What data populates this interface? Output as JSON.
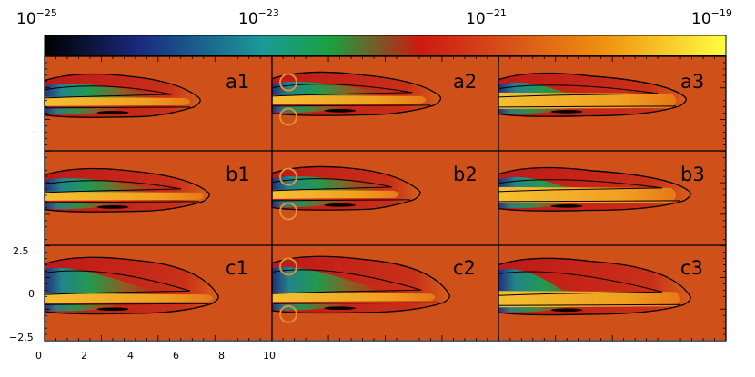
{
  "colorbar": {
    "labels": [
      {
        "base": "10",
        "exp": "−25"
      },
      {
        "base": "10",
        "exp": "−23"
      },
      {
        "base": "10",
        "exp": "−21"
      },
      {
        "base": "10",
        "exp": "−19"
      }
    ],
    "colors": [
      "#000000",
      "#1a2a80",
      "#1a9a98",
      "#1aa040",
      "#cc1a10",
      "#d8501a",
      "#f09010",
      "#ffff40"
    ]
  },
  "panels": [
    [
      "a1",
      "a2",
      "a3"
    ],
    [
      "b1",
      "b2",
      "b3"
    ],
    [
      "c1",
      "c2",
      "c3"
    ]
  ],
  "x_axis": {
    "ticks": [
      "0",
      "2",
      "4",
      "6",
      "8",
      "10"
    ]
  },
  "y_axis": {
    "ticks": [
      "2.5",
      "0",
      "−2.5"
    ]
  },
  "palette": {
    "background": "#d0501a",
    "jet_core": "#f0a020",
    "cocoon": "#c02818",
    "mix": "#1a9a70",
    "deep": "#1a3080",
    "contour": "#000000"
  }
}
